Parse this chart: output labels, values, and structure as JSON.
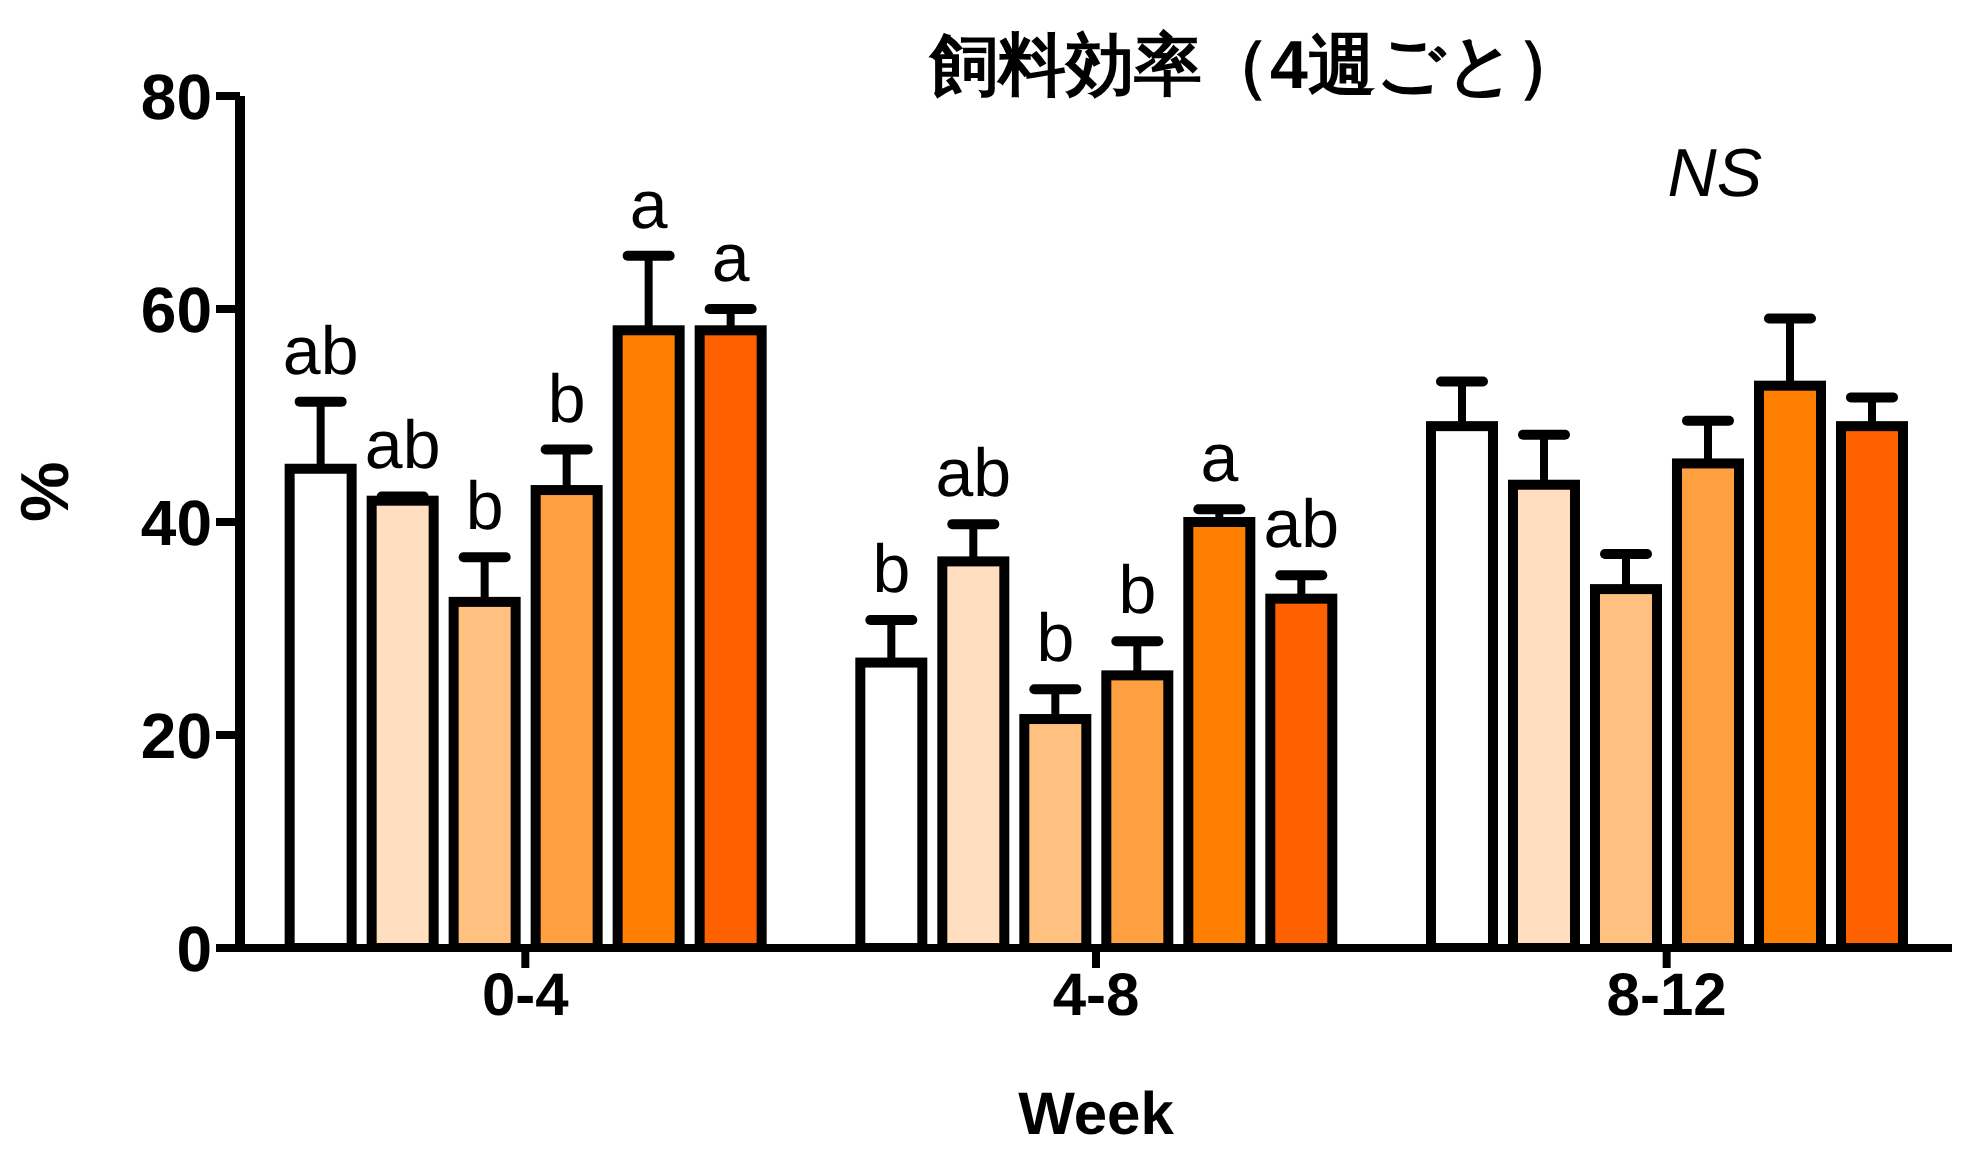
{
  "chart_data": {
    "type": "bar",
    "title": "飼料効率（4週ごと）",
    "xlabel": "Week",
    "ylabel": "%",
    "categories": [
      "0-4",
      "4-8",
      "8-12"
    ],
    "series": [
      {
        "color": "#ffffff",
        "values": [
          45,
          26.8,
          49
        ],
        "errors": [
          6.3,
          4,
          4.2
        ],
        "value_labels": [
          "ab",
          "b",
          null
        ]
      },
      {
        "color": "#ffdfc0",
        "values": [
          42,
          36.3,
          43.5
        ],
        "errors": [
          0.4,
          3.5,
          4.7
        ],
        "value_labels": [
          "ab",
          "ab",
          null
        ]
      },
      {
        "color": "#ffc080",
        "values": [
          32.5,
          21.5,
          33.7
        ],
        "errors": [
          4.2,
          2.8,
          3.3
        ],
        "value_labels": [
          "b",
          "b",
          null
        ]
      },
      {
        "color": "#ffa040",
        "values": [
          43,
          25.6,
          45.5
        ],
        "errors": [
          3.8,
          3.2,
          4
        ],
        "value_labels": [
          "b",
          "b",
          null
        ]
      },
      {
        "color": "#ff8000",
        "values": [
          58,
          40,
          52.8
        ],
        "errors": [
          7,
          1.2,
          6.3
        ],
        "value_labels": [
          "a",
          "a",
          null
        ]
      },
      {
        "color": "#ff6000",
        "values": [
          58,
          32.8,
          49
        ],
        "errors": [
          2,
          2.2,
          2.7
        ],
        "value_labels": [
          "a",
          "ab",
          null
        ]
      }
    ],
    "annotations": [
      "NS"
    ],
    "ylim": [
      0,
      80
    ],
    "yticks": [
      0,
      20,
      40,
      60,
      80
    ]
  }
}
